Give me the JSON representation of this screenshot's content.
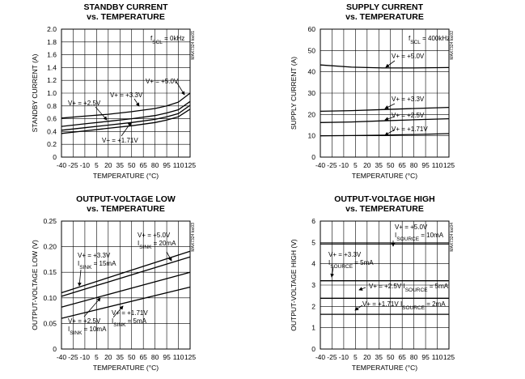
{
  "chart_data": [
    {
      "type": "line",
      "title": "STANDBY CURRENT",
      "subtitle": "vs. TEMPERATURE",
      "xlabel": "TEMPERATURE (°C)",
      "ylabel": "STANDBY CURRENT (A)",
      "xlim": [
        -40,
        125
      ],
      "ylim": [
        0,
        2.0
      ],
      "xticks": [
        "-40",
        "-25",
        "-10",
        "5",
        "20",
        "35",
        "50",
        "65",
        "80",
        "95",
        "110",
        "125"
      ],
      "yticks": [
        "0",
        "0.2",
        "0.4",
        "0.6",
        "0.8",
        "1.0",
        "1.2",
        "1.4",
        "1.6",
        "1.8",
        "2.0"
      ],
      "ystep": 0.2,
      "condition": "fSCL = 0kHz",
      "code": "MAX7324 toc01",
      "grid": true,
      "series": [
        {
          "name": "V+ = +5.0V",
          "x": [
            -40,
            -10,
            20,
            50,
            80,
            95,
            110,
            125
          ],
          "y": [
            0.61,
            0.64,
            0.67,
            0.71,
            0.76,
            0.8,
            0.86,
            1.0
          ]
        },
        {
          "name": "V+ = +3.3V",
          "x": [
            -40,
            -10,
            20,
            50,
            80,
            95,
            110,
            125
          ],
          "y": [
            0.48,
            0.52,
            0.56,
            0.6,
            0.65,
            0.69,
            0.74,
            0.87
          ]
        },
        {
          "name": "V+ = +2.5V",
          "x": [
            -40,
            -10,
            20,
            50,
            80,
            95,
            110,
            125
          ],
          "y": [
            0.42,
            0.46,
            0.5,
            0.54,
            0.59,
            0.63,
            0.68,
            0.81
          ]
        },
        {
          "name": "V+ = +1.71V",
          "x": [
            -40,
            -10,
            20,
            50,
            80,
            95,
            110,
            125
          ],
          "y": [
            0.37,
            0.41,
            0.45,
            0.49,
            0.54,
            0.58,
            0.63,
            0.75
          ]
        }
      ]
    },
    {
      "type": "line",
      "title": "SUPPLY CURRENT",
      "subtitle": "vs. TEMPERATURE",
      "xlabel": "TEMPERATURE (°C)",
      "ylabel": "SUPPLY CURRENT (A)",
      "xlim": [
        -40,
        125
      ],
      "ylim": [
        0,
        60
      ],
      "xticks": [
        "-40",
        "-25",
        "-10",
        "5",
        "20",
        "35",
        "50",
        "65",
        "80",
        "95",
        "110",
        "125"
      ],
      "yticks": [
        "0",
        "10",
        "20",
        "30",
        "40",
        "50",
        "60"
      ],
      "ystep": 10,
      "condition": "fSCL = 400kHz",
      "code": "MAX7324 toc02",
      "grid": true,
      "series": [
        {
          "name": "V+ = +5.0V",
          "x": [
            -40,
            0,
            40,
            80,
            125
          ],
          "y": [
            43.2,
            42.2,
            41.8,
            41.8,
            42.0
          ]
        },
        {
          "name": "V+ = +3.3V",
          "x": [
            -40,
            0,
            40,
            80,
            125
          ],
          "y": [
            21.5,
            21.8,
            22.3,
            22.8,
            23.3
          ]
        },
        {
          "name": "V+ = +2.5V",
          "x": [
            -40,
            0,
            40,
            80,
            125
          ],
          "y": [
            16.2,
            16.5,
            17.0,
            17.5,
            18.0
          ]
        },
        {
          "name": "V+ = +1.71V",
          "x": [
            -40,
            0,
            40,
            80,
            125
          ],
          "y": [
            10.0,
            10.1,
            10.3,
            10.6,
            11.0
          ]
        }
      ]
    },
    {
      "type": "line",
      "title": "OUTPUT-VOLTAGE LOW",
      "subtitle": "vs. TEMPERATURE",
      "xlabel": "TEMPERATURE (°C)",
      "ylabel": "OUTPUT-VOLTAGE LOW (V)",
      "xlim": [
        -40,
        125
      ],
      "ylim": [
        0,
        0.25
      ],
      "xticks": [
        "-40",
        "-25",
        "-10",
        "5",
        "20",
        "35",
        "50",
        "65",
        "80",
        "95",
        "110",
        "125"
      ],
      "yticks": [
        "0",
        "0.05",
        "0.10",
        "0.15",
        "0.20",
        "0.25"
      ],
      "ystep": 0.05,
      "code": "MAX7324 toc03",
      "grid": true,
      "series": [
        {
          "name": "V+ = +5.0V, ISINK = 20mA",
          "x": [
            -40,
            125
          ],
          "y": [
            0.11,
            0.191
          ]
        },
        {
          "name": "V+ = +3.3V, ISINK = 15mA",
          "x": [
            -40,
            125
          ],
          "y": [
            0.103,
            0.18
          ]
        },
        {
          "name": "V+ = +2.5V, ISINK = 10mA",
          "x": [
            -40,
            125
          ],
          "y": [
            0.082,
            0.15
          ]
        },
        {
          "name": "V+ = +1.71V, ISINK = 5mA",
          "x": [
            -40,
            125
          ],
          "y": [
            0.06,
            0.121
          ]
        }
      ]
    },
    {
      "type": "line",
      "title": "OUTPUT-VOLTAGE HIGH",
      "subtitle": "vs. TEMPERATURE",
      "xlabel": "TEMPERATURE (°C)",
      "ylabel": "OUTPUT-VOLTAGE HIGH (V)",
      "xlim": [
        -40,
        125
      ],
      "ylim": [
        0,
        6
      ],
      "xticks": [
        "-40",
        "-25",
        "-10",
        "5",
        "20",
        "35",
        "50",
        "65",
        "80",
        "95",
        "110",
        "125"
      ],
      "yticks": [
        "0",
        "1",
        "2",
        "3",
        "4",
        "5",
        "6"
      ],
      "ystep": 1,
      "code": "MAX7324 toc04",
      "grid": true,
      "series": [
        {
          "name": "V+ = +5.0V, ISOURCE = 10mA",
          "x": [
            -40,
            125
          ],
          "y": [
            4.93,
            4.93
          ]
        },
        {
          "name": "V+ = +3.3V, ISOURCE = 5mA",
          "x": [
            -40,
            125
          ],
          "y": [
            3.2,
            3.2
          ]
        },
        {
          "name": "V+ = +2.5V, ISOURCE = 5mA",
          "x": [
            -40,
            125
          ],
          "y": [
            2.38,
            2.38
          ]
        },
        {
          "name": "V+ = +1.71V, ISOURCE = 2mA",
          "x": [
            -40,
            125
          ],
          "y": [
            1.63,
            1.63
          ]
        }
      ]
    }
  ]
}
